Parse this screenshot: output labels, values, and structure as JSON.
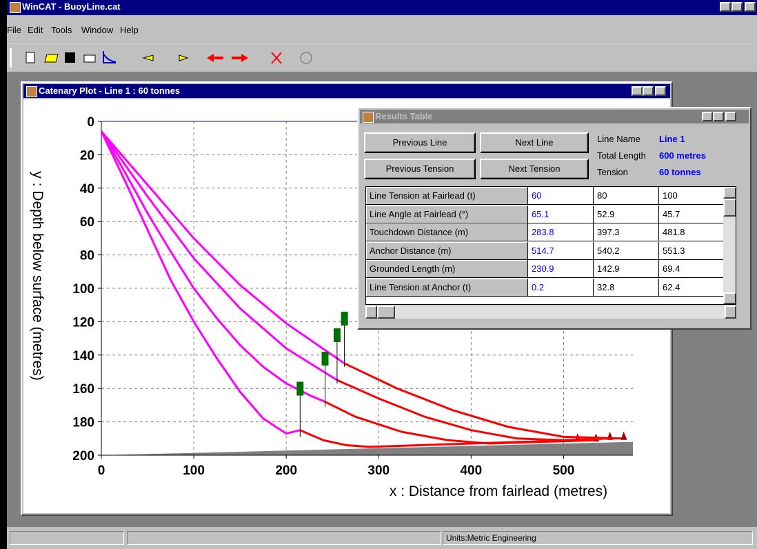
{
  "app": {
    "title": "WinCAT - BuoyLine.cat",
    "menu": [
      "File",
      "Edit",
      "Tools",
      "Window",
      "Help"
    ],
    "status": "Units:Metric Engineering"
  },
  "plot_window": {
    "title": "Catenary Plot - Line 1 : 60 tonnes"
  },
  "chart_data": {
    "type": "line",
    "xlabel": "x : Distance from fairlead (metres)",
    "ylabel": "y : Depth below surface (metres)",
    "xlim": [
      0,
      575
    ],
    "ylim": [
      0,
      200
    ],
    "y_inverted": true,
    "grid": true,
    "xticks": [
      0,
      100,
      200,
      300,
      400,
      500
    ],
    "yticks": [
      0,
      20,
      40,
      60,
      80,
      100,
      120,
      140,
      160,
      180,
      200
    ],
    "series": [
      {
        "color": "#ff00ff",
        "x": [
          0,
          25,
          50,
          75,
          100,
          125,
          150,
          175,
          200,
          215
        ],
        "values": [
          6,
          35,
          65,
          95,
          120,
          142,
          162,
          178,
          187,
          185
        ]
      },
      {
        "color": "#ff00ff",
        "x": [
          0,
          25,
          50,
          75,
          100,
          125,
          150,
          175,
          200,
          225,
          242
        ],
        "values": [
          6,
          30,
          55,
          78,
          100,
          118,
          134,
          147,
          157,
          164,
          168
        ]
      },
      {
        "color": "#ff00ff",
        "x": [
          0,
          50,
          100,
          150,
          200,
          255
        ],
        "values": [
          6,
          45,
          82,
          112,
          136,
          155
        ]
      },
      {
        "color": "#ff00ff",
        "x": [
          0,
          50,
          100,
          150,
          200,
          263
        ],
        "values": [
          6,
          38,
          70,
          98,
          121,
          145
        ]
      },
      {
        "color": "#ff0000",
        "x": [
          215,
          240,
          265,
          290,
          400,
          515
        ],
        "values": [
          185,
          191,
          194,
          195,
          193,
          191
        ]
      },
      {
        "color": "#ff0000",
        "x": [
          242,
          275,
          325,
          375,
          420,
          535
        ],
        "values": [
          168,
          177,
          186,
          191,
          193,
          191
        ]
      },
      {
        "color": "#ff0000",
        "x": [
          255,
          300,
          350,
          400,
          450,
          500,
          550
        ],
        "values": [
          155,
          166,
          177,
          185,
          190,
          191,
          190
        ]
      },
      {
        "color": "#ff0000",
        "x": [
          263,
          320,
          380,
          440,
          500,
          565
        ],
        "values": [
          145,
          160,
          173,
          183,
          189,
          190
        ]
      }
    ],
    "buoys": {
      "color": "#007000",
      "x": [
        215,
        242,
        255,
        263
      ],
      "values": [
        156,
        138,
        124,
        114
      ]
    },
    "seabed": {
      "color": "#808080",
      "x": [
        0,
        575
      ],
      "values": [
        200,
        192
      ]
    },
    "surface_color": "#0000ff"
  },
  "results_window": {
    "title": "Results Table",
    "buttons": [
      "Previous Line",
      "Next Line",
      "Previous Tension",
      "Next Tension"
    ],
    "info": [
      {
        "label": "Line Name",
        "value": "Line 1"
      },
      {
        "label": "Total Length",
        "value": "600 metres"
      },
      {
        "label": "Tension",
        "value": "60 tonnes"
      }
    ],
    "rows": [
      [
        "Line Tension at Fairlead (t)",
        "60",
        "80",
        "100"
      ],
      [
        "Line Angle at Fairlead (°)",
        "65.1",
        "52.9",
        "45.7"
      ],
      [
        "Touchdown Distance (m)",
        "283.8",
        "397.3",
        "481.8"
      ],
      [
        "Anchor Distance (m)",
        "514.7",
        "540.2",
        "551.3"
      ],
      [
        "Grounded Length (m)",
        "230.9",
        "142.9",
        "69.4"
      ],
      [
        "Line Tension at Anchor (t)",
        "0.2",
        "32.8",
        "62.4"
      ]
    ]
  }
}
